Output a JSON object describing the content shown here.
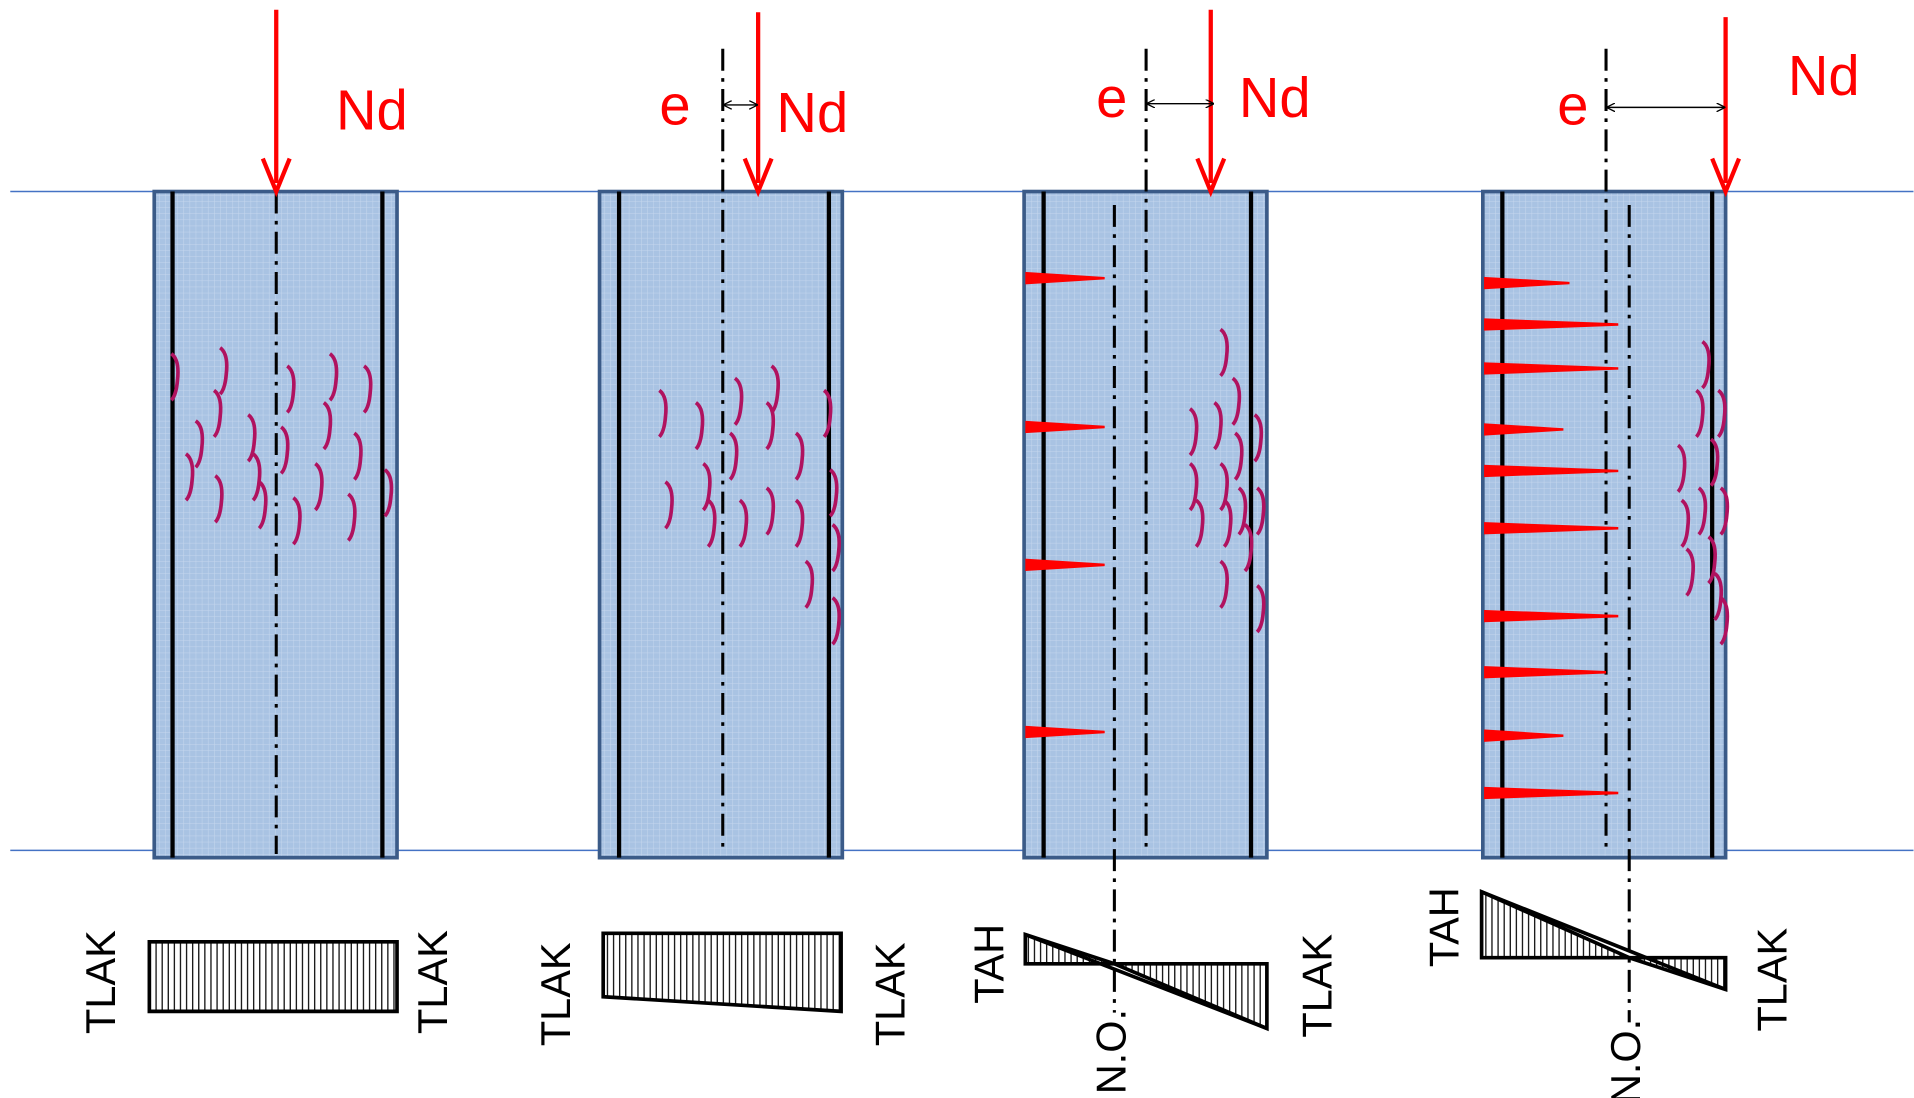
{
  "columns": [
    {
      "force": "Nd",
      "left_label": "TLAK",
      "right_label": "TLAK"
    },
    {
      "force": "Nd",
      "eccentricity": "e",
      "left_label": "TLAK",
      "right_label": "TLAK"
    },
    {
      "force": "Nd",
      "eccentricity": "e",
      "left_label": "TAH",
      "right_label": "TLAK",
      "neutral_axis": "N.O."
    },
    {
      "force": "Nd",
      "eccentricity": "e",
      "left_label": "TAH",
      "right_label": "TLAK",
      "neutral_axis": "N.O."
    }
  ]
}
